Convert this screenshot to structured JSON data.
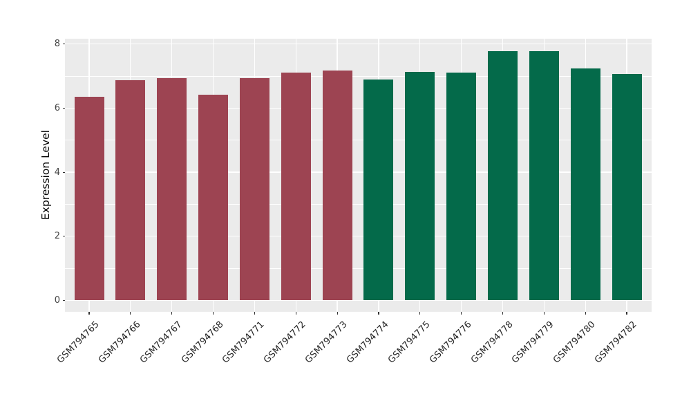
{
  "chart_data": {
    "type": "bar",
    "title": "",
    "xlabel": "",
    "ylabel": "Expression Level",
    "categories": [
      "GSM794765",
      "GSM794766",
      "GSM794767",
      "GSM794768",
      "GSM794771",
      "GSM794772",
      "GSM794773",
      "GSM794774",
      "GSM794775",
      "GSM794776",
      "GSM794778",
      "GSM794779",
      "GSM794780",
      "GSM794782"
    ],
    "values": [
      6.36,
      6.87,
      6.94,
      6.42,
      6.94,
      7.1,
      7.17,
      6.9,
      7.12,
      7.11,
      7.77,
      7.77,
      7.23,
      7.06
    ],
    "bar_colors": [
      "#9D4452",
      "#9D4452",
      "#9D4452",
      "#9D4452",
      "#9D4452",
      "#9D4452",
      "#9D4452",
      "#046A4A",
      "#046A4A",
      "#046A4A",
      "#046A4A",
      "#046A4A",
      "#046A4A",
      "#046A4A"
    ],
    "group_colors": {
      "left_group": "#9D4452",
      "right_group": "#046A4A"
    },
    "yticks": [
      0,
      2,
      4,
      6,
      8
    ],
    "yticks_minor": [
      1,
      3,
      5,
      7
    ],
    "ylim": [
      0,
      8.2
    ],
    "grid": "horizontal major+minor, vertical major at category centers",
    "legend_position": "none",
    "styles": {
      "panel_background": "#EBEBEB",
      "grid_color": "#FFFFFF",
      "tick_mark_color": "#333333",
      "tick_label_color": "#454545",
      "axis_title_color": "#000000"
    }
  }
}
